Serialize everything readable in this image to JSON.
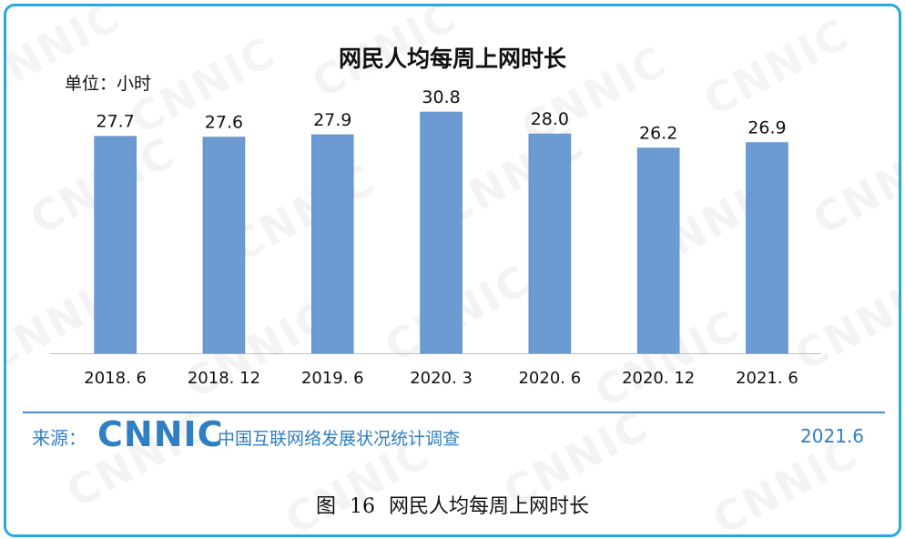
{
  "chart_data": {
    "type": "bar",
    "title": "网民人均每周上网时长",
    "unit_label": "单位：小时",
    "categories": [
      "2018. 6",
      "2018. 12",
      "2019. 6",
      "2020. 3",
      "2020. 6",
      "2020. 12",
      "2021. 6"
    ],
    "values": [
      27.7,
      27.6,
      27.9,
      30.8,
      28.0,
      26.2,
      26.9
    ],
    "value_labels": [
      "27.7",
      "27.6",
      "27.9",
      "30.8",
      "28.0",
      "26.2",
      "26.9"
    ],
    "ylim": [
      0,
      30.8
    ],
    "bar_color": "#6b9bd2",
    "grid": false,
    "legend": "none"
  },
  "footer": {
    "source_label": "来源：",
    "logo_text": "CNNIC",
    "survey_name": "中国互联网络发展状况统计调查",
    "date": "2021.6"
  },
  "caption": "图 16  网民人均每周上网时长",
  "watermark_text": "CNNIC",
  "colors": {
    "frame": "#29a8e0",
    "accent": "#2f7fc2",
    "rule": "#4a8fc8"
  }
}
